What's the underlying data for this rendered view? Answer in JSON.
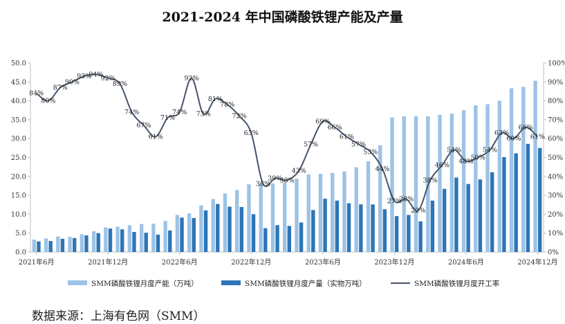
{
  "chart_data": {
    "type": "bar",
    "title": "2021-2024 年中国磷酸铁锂产能及产量",
    "x_tick_labels": [
      "2021年6月",
      "2021年12月",
      "2022年6月",
      "2022年12月",
      "2023年6月",
      "2023年12月",
      "2024年6月",
      "2024年12月"
    ],
    "x": [
      "2021-06",
      "2021-07",
      "2021-08",
      "2021-09",
      "2021-10",
      "2021-11",
      "2021-12",
      "2022-01",
      "2022-02",
      "2022-03",
      "2022-04",
      "2022-05",
      "2022-06",
      "2022-07",
      "2022-08",
      "2022-09",
      "2022-10",
      "2022-11",
      "2022-12",
      "2023-01",
      "2023-02",
      "2023-03",
      "2023-04",
      "2023-05",
      "2023-06",
      "2023-07",
      "2023-08",
      "2023-09",
      "2023-10",
      "2023-11",
      "2023-12",
      "2024-01",
      "2024-02",
      "2024-03",
      "2024-04",
      "2024-05",
      "2024-06",
      "2024-07",
      "2024-08",
      "2024-09",
      "2024-10",
      "2024-11",
      "2024-12"
    ],
    "y_left": {
      "ylim": [
        0,
        50
      ],
      "ticks": [
        "0.0",
        "5.0",
        "10.0",
        "15.0",
        "20.0",
        "25.0",
        "30.0",
        "35.0",
        "40.0",
        "45.0",
        "50.0"
      ]
    },
    "y_right": {
      "ylim": [
        0,
        100
      ],
      "ticks": [
        "0%",
        "10%",
        "20%",
        "30%",
        "40%",
        "50%",
        "60%",
        "70%",
        "80%",
        "90%",
        "100%"
      ]
    },
    "grid": false,
    "legend_position": "bottom",
    "series": [
      {
        "name": "SMM磷酸铁锂月度产能（万吨）",
        "type": "bar",
        "axis": "left",
        "color": "#9dc3e6",
        "values": [
          3.3,
          3.6,
          4.1,
          4.0,
          4.7,
          5.5,
          6.5,
          6.7,
          7.1,
          7.4,
          7.5,
          8.2,
          9.8,
          10.2,
          12.3,
          14.0,
          15.5,
          16.4,
          17.9,
          18.0,
          18.1,
          18.3,
          19.4,
          20.5,
          20.7,
          20.9,
          21.3,
          22.4,
          24.0,
          28.2,
          35.6,
          35.9,
          35.9,
          35.9,
          36.3,
          36.6,
          37.5,
          38.8,
          39.1,
          40.0,
          43.3,
          43.7,
          45.3
        ]
      },
      {
        "name": "SMM磷酸铁锂月度产量（实物万吨）",
        "type": "bar",
        "axis": "left",
        "color": "#2e75b6",
        "values": [
          2.8,
          2.9,
          3.5,
          3.7,
          4.4,
          5.0,
          6.2,
          6.0,
          5.3,
          5.1,
          4.6,
          5.7,
          9.1,
          9.0,
          11.0,
          12.7,
          12.0,
          11.9,
          10.0,
          6.3,
          7.1,
          6.9,
          7.8,
          11.1,
          14.1,
          13.6,
          12.9,
          12.6,
          12.6,
          11.3,
          9.5,
          9.8,
          8.1,
          13.6,
          16.7,
          19.7,
          18.0,
          19.2,
          21.1,
          25.1,
          26.1,
          28.6,
          27.5
        ]
      },
      {
        "name": "SMM磷酸铁锂月度开工率",
        "type": "line",
        "axis": "right",
        "color": "#44546a",
        "values": [
          84,
          80,
          87,
          90,
          93,
          94,
          92,
          89,
          74,
          67,
          61,
          71,
          74,
          92,
          73,
          81,
          78,
          72,
          63,
          36,
          39,
          38,
          43,
          57,
          69,
          66,
          61,
          57,
          53,
          44,
          27,
          28,
          22,
          38,
          46,
          54,
          48,
          50,
          54,
          63,
          60,
          66,
          61
        ],
        "labels": [
          "84%",
          "80%",
          "87%",
          "90%",
          "93%",
          "94%",
          "92%",
          "89%",
          "74%",
          "67%",
          "61%",
          "71%",
          "74%",
          "92%",
          "73%",
          "81%",
          "78%",
          "72%",
          "63%",
          "36%",
          "39%",
          "38%",
          "43%",
          "57%",
          "69%",
          "66%",
          "61%",
          "57%",
          "53%",
          "44%",
          "27%",
          "28%",
          "22%",
          "38%",
          "46%",
          "54%",
          "48%",
          "50%",
          "54%",
          "63%",
          "60%",
          "66%",
          "61%"
        ]
      }
    ]
  },
  "source": "数据来源：上海有色网（SMM）"
}
